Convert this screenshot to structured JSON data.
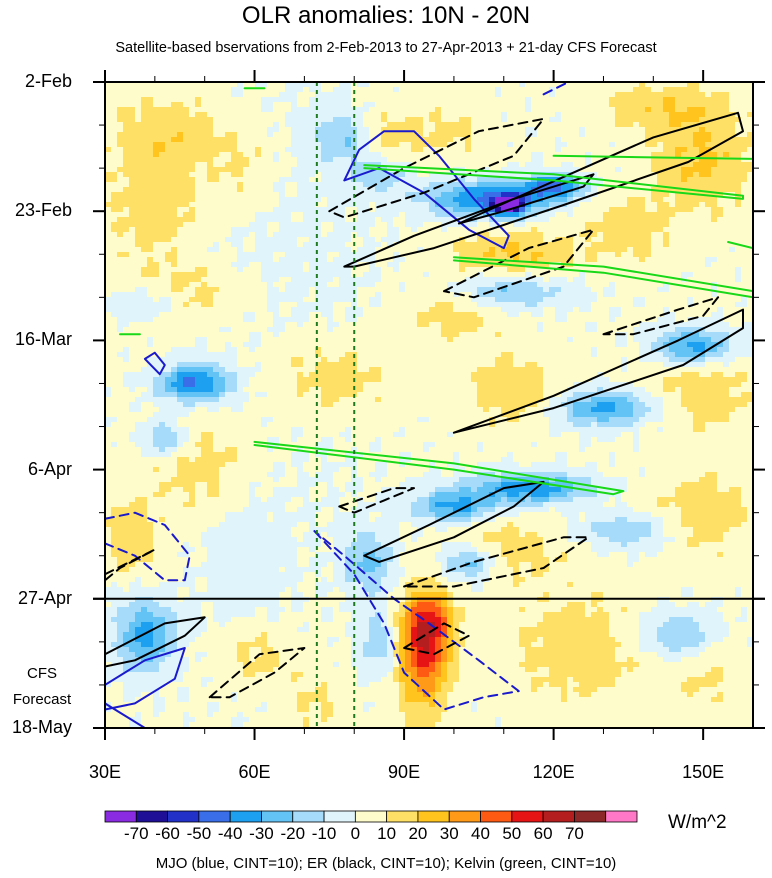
{
  "chart_data": {
    "type": "heatmap",
    "title": "OLR anomalies: 10N - 20N",
    "subtitle": "Satellite-based bservations from 2-Feb-2013 to 27-Apr-2013 + 21-day CFS Forecast",
    "xaxis": {
      "range": [
        30,
        160
      ],
      "ticks": [
        30,
        60,
        90,
        120,
        150
      ],
      "tick_labels": [
        "30E",
        "60E",
        "90E",
        "120E",
        "150E"
      ]
    },
    "yaxis": {
      "range_days": [
        0,
        105
      ],
      "reversed": true,
      "ticks": [
        0,
        21,
        42,
        63,
        84,
        105
      ],
      "tick_labels": [
        "2-Feb",
        "23-Feb",
        "16-Mar",
        "6-Apr",
        "27-Apr",
        "18-May"
      ]
    },
    "forecast": {
      "start_day": 84,
      "label_line1": "CFS",
      "label_line2": "Forecast"
    },
    "reference_lines_lon": [
      72.5,
      80
    ],
    "colorbar": {
      "label_values": [
        -70,
        -60,
        -50,
        -40,
        -30,
        -20,
        -10,
        0,
        10,
        20,
        30,
        40,
        50,
        60,
        70
      ],
      "tick_labels": [
        "-70",
        "-60",
        "-50",
        "-40",
        "-30",
        "-20",
        "-10",
        "0",
        "10",
        "20",
        "30",
        "40",
        "50",
        "60",
        "70"
      ],
      "colors": [
        "#8a2be2",
        "#1e0f96",
        "#2232c8",
        "#3a6ee8",
        "#1ea0f0",
        "#64c3f5",
        "#a6dcfa",
        "#dff4fb",
        "#fffccc",
        "#ffe066",
        "#ffc41e",
        "#ff9a19",
        "#ff5a14",
        "#e61414",
        "#b41e1e",
        "#8c2828",
        "#ff78c8"
      ],
      "units": "W/m^2"
    },
    "anomaly_features": [
      {
        "lon": 43,
        "day": 8,
        "value": 15,
        "slon": 12,
        "sday": 6
      },
      {
        "lon": 40,
        "day": 20,
        "value": 15,
        "slon": 10,
        "sday": 9
      },
      {
        "lon": 58,
        "day": 14,
        "value": 10,
        "slon": 7,
        "sday": 7
      },
      {
        "lon": 86,
        "day": 9,
        "value": 15,
        "slon": 8,
        "sday": 5
      },
      {
        "lon": 100,
        "day": 8,
        "value": 10,
        "slon": 7,
        "sday": 5
      },
      {
        "lon": 142,
        "day": 4,
        "value": 15,
        "slon": 12,
        "sday": 4
      },
      {
        "lon": 150,
        "day": 13,
        "value": 20,
        "slon": 10,
        "sday": 8
      },
      {
        "lon": 135,
        "day": 24,
        "value": 15,
        "slon": 8,
        "sday": 5
      },
      {
        "lon": 112,
        "day": 28,
        "value": 20,
        "slon": 12,
        "sday": 4
      },
      {
        "lon": 45,
        "day": 35,
        "value": 15,
        "slon": 14,
        "sday": 5
      },
      {
        "lon": 100,
        "day": 37,
        "value": 15,
        "slon": 10,
        "sday": 5
      },
      {
        "lon": 75,
        "day": 48,
        "value": 15,
        "slon": 14,
        "sday": 7
      },
      {
        "lon": 112,
        "day": 50,
        "value": 15,
        "slon": 10,
        "sday": 6
      },
      {
        "lon": 150,
        "day": 50,
        "value": 15,
        "slon": 10,
        "sday": 7
      },
      {
        "lon": 50,
        "day": 62,
        "value": 15,
        "slon": 12,
        "sday": 8
      },
      {
        "lon": 150,
        "day": 70,
        "value": 15,
        "slon": 10,
        "sday": 7
      },
      {
        "lon": 110,
        "day": 76,
        "value": 15,
        "slon": 12,
        "sday": 5
      },
      {
        "lon": 35,
        "day": 74,
        "value": 15,
        "slon": 6,
        "sday": 6
      },
      {
        "lon": 94,
        "day": 93,
        "value": 45,
        "slon": 5,
        "sday": 9
      },
      {
        "lon": 95,
        "day": 88,
        "value": 30,
        "slon": 5,
        "sday": 5
      },
      {
        "lon": 60,
        "day": 93,
        "value": 15,
        "slon": 8,
        "sday": 6
      },
      {
        "lon": 125,
        "day": 92,
        "value": 15,
        "slon": 14,
        "sday": 9
      },
      {
        "lon": 150,
        "day": 96,
        "value": 10,
        "slon": 8,
        "sday": 7
      },
      {
        "lon": 72,
        "day": 101,
        "value": 10,
        "slon": 6,
        "sday": 5
      },
      {
        "lon": 67,
        "day": 35,
        "value": -5,
        "slon": 20,
        "sday": 40
      },
      {
        "lon": 58,
        "day": 80,
        "value": -8,
        "slon": 8,
        "sday": 18
      },
      {
        "lon": 78,
        "day": 9,
        "value": -25,
        "slon": 6,
        "sday": 4
      },
      {
        "lon": 107,
        "day": 19,
        "value": -45,
        "slon": 12,
        "sday": 3
      },
      {
        "lon": 111,
        "day": 20,
        "value": -70,
        "slon": 3,
        "sday": 1.5
      },
      {
        "lon": 120,
        "day": 17,
        "value": -40,
        "slon": 6,
        "sday": 2
      },
      {
        "lon": 85,
        "day": 15,
        "value": -20,
        "slon": 6,
        "sday": 3
      },
      {
        "lon": 38,
        "day": 36,
        "value": -20,
        "slon": 8,
        "sday": 3
      },
      {
        "lon": 48,
        "day": 49,
        "value": -45,
        "slon": 7,
        "sday": 3
      },
      {
        "lon": 42,
        "day": 58,
        "value": -25,
        "slon": 5,
        "sday": 3
      },
      {
        "lon": 110,
        "day": 34,
        "value": -25,
        "slon": 12,
        "sday": 3
      },
      {
        "lon": 148,
        "day": 43,
        "value": -40,
        "slon": 8,
        "sday": 3
      },
      {
        "lon": 130,
        "day": 53,
        "value": -35,
        "slon": 10,
        "sday": 3
      },
      {
        "lon": 115,
        "day": 66,
        "value": -40,
        "slon": 12,
        "sday": 2.5
      },
      {
        "lon": 100,
        "day": 69,
        "value": -35,
        "slon": 8,
        "sday": 2.5
      },
      {
        "lon": 135,
        "day": 73,
        "value": -20,
        "slon": 10,
        "sday": 3
      },
      {
        "lon": 83,
        "day": 78,
        "value": -25,
        "slon": 5,
        "sday": 5
      },
      {
        "lon": 103,
        "day": 78,
        "value": -30,
        "slon": 6,
        "sday": 3
      },
      {
        "lon": 38,
        "day": 90,
        "value": -35,
        "slon": 6,
        "sday": 6
      },
      {
        "lon": 85,
        "day": 91,
        "value": -20,
        "slon": 4,
        "sday": 5
      },
      {
        "lon": 145,
        "day": 90,
        "value": -25,
        "slon": 8,
        "sday": 4
      }
    ],
    "contours": [
      {
        "name": "MJO",
        "color": "#1a1acc",
        "dashed": false,
        "points": [
          [
            78,
            16
          ],
          [
            81,
            11
          ],
          [
            86,
            8
          ],
          [
            92,
            8
          ],
          [
            97,
            12
          ],
          [
            104,
            19
          ],
          [
            111,
            25
          ],
          [
            110,
            27
          ],
          [
            103,
            24
          ],
          [
            94,
            18
          ],
          [
            85,
            14
          ],
          [
            78,
            16
          ]
        ]
      },
      {
        "name": "MJO",
        "color": "#1a1acc",
        "dashed": false,
        "points": [
          [
            38,
            45
          ],
          [
            40,
            44
          ],
          [
            42,
            46
          ],
          [
            41,
            47.5
          ],
          [
            38,
            45
          ]
        ]
      },
      {
        "name": "MJO",
        "color": "#1a1acc",
        "dashed": false,
        "points": [
          [
            30,
            98
          ],
          [
            38,
            94
          ],
          [
            46,
            92
          ],
          [
            44,
            97
          ],
          [
            36,
            101
          ],
          [
            30,
            102
          ]
        ]
      },
      {
        "name": "MJO",
        "color": "#1a1acc",
        "dashed": false,
        "points": [
          [
            30,
            101
          ],
          [
            38,
            105
          ]
        ]
      },
      {
        "name": "MJO",
        "color": "#1a1acc",
        "dashed": true,
        "points": [
          [
            118,
            2
          ],
          [
            123,
            0
          ],
          [
            126,
            0
          ]
        ]
      },
      {
        "name": "MJO",
        "color": "#1a1acc",
        "dashed": true,
        "points": [
          [
            30,
            71
          ],
          [
            36,
            70
          ],
          [
            42,
            72
          ],
          [
            47,
            77
          ],
          [
            46,
            81
          ],
          [
            42,
            81
          ],
          [
            36,
            77
          ],
          [
            30,
            75
          ]
        ]
      },
      {
        "name": "MJO",
        "color": "#1a1acc",
        "dashed": true,
        "points": [
          [
            72,
            73
          ],
          [
            80,
            80
          ],
          [
            86,
            88
          ],
          [
            90,
            96
          ],
          [
            98,
            102
          ],
          [
            106,
            100
          ],
          [
            113,
            99
          ],
          [
            105,
            94
          ],
          [
            95,
            88
          ],
          [
            88,
            84
          ],
          [
            78,
            77
          ],
          [
            72,
            73
          ]
        ]
      },
      {
        "name": "ER",
        "color": "#000000",
        "dashed": false,
        "points": [
          [
            78,
            30
          ],
          [
            92,
            25
          ],
          [
            112,
            19
          ],
          [
            140,
            9
          ],
          [
            157,
            5
          ],
          [
            158,
            8
          ],
          [
            147,
            13
          ],
          [
            122,
            20
          ],
          [
            96,
            27
          ],
          [
            80,
            30
          ],
          [
            78,
            30
          ]
        ]
      },
      {
        "name": "ER",
        "color": "#000000",
        "dashed": false,
        "points": [
          [
            101,
            23
          ],
          [
            112,
            19
          ],
          [
            128,
            15
          ],
          [
            126,
            17
          ],
          [
            110,
            21
          ],
          [
            101,
            23
          ]
        ]
      },
      {
        "name": "ER",
        "color": "#000000",
        "dashed": false,
        "points": [
          [
            100,
            57
          ],
          [
            120,
            51
          ],
          [
            145,
            42
          ],
          [
            158,
            37
          ],
          [
            158,
            40
          ],
          [
            146,
            46
          ],
          [
            120,
            53
          ],
          [
            100,
            57
          ]
        ]
      },
      {
        "name": "ER",
        "color": "#000000",
        "dashed": false,
        "points": [
          [
            82,
            77
          ],
          [
            95,
            72
          ],
          [
            110,
            66
          ],
          [
            118,
            65
          ],
          [
            112,
            69
          ],
          [
            100,
            74
          ],
          [
            85,
            78
          ],
          [
            82,
            77
          ]
        ]
      },
      {
        "name": "ER",
        "color": "#000000",
        "dashed": false,
        "points": [
          [
            30,
            93
          ],
          [
            42,
            88
          ],
          [
            50,
            87
          ],
          [
            46,
            90
          ],
          [
            36,
            94
          ],
          [
            30,
            95
          ]
        ]
      },
      {
        "name": "ER",
        "color": "#000000",
        "dashed": true,
        "points": [
          [
            75,
            21
          ],
          [
            90,
            14
          ],
          [
            105,
            8
          ],
          [
            118,
            6
          ],
          [
            112,
            12
          ],
          [
            94,
            18
          ],
          [
            78,
            22
          ],
          [
            75,
            21
          ]
        ]
      },
      {
        "name": "ER",
        "color": "#000000",
        "dashed": true,
        "points": [
          [
            98,
            34
          ],
          [
            115,
            27
          ],
          [
            128,
            24
          ],
          [
            122,
            30
          ],
          [
            104,
            35
          ],
          [
            98,
            34
          ]
        ]
      },
      {
        "name": "ER",
        "color": "#000000",
        "dashed": true,
        "points": [
          [
            130,
            41
          ],
          [
            145,
            37
          ],
          [
            153,
            35
          ],
          [
            150,
            38
          ],
          [
            136,
            41
          ],
          [
            130,
            41
          ]
        ]
      },
      {
        "name": "ER",
        "color": "#000000",
        "dashed": true,
        "points": [
          [
            77,
            69
          ],
          [
            88,
            66
          ],
          [
            92,
            66
          ],
          [
            86,
            68
          ],
          [
            80,
            70
          ],
          [
            77,
            69
          ]
        ]
      },
      {
        "name": "ER",
        "color": "#000000",
        "dashed": true,
        "points": [
          [
            90,
            82
          ],
          [
            104,
            78
          ],
          [
            122,
            74
          ],
          [
            127,
            74
          ],
          [
            118,
            79
          ],
          [
            100,
            82
          ],
          [
            90,
            82
          ]
        ]
      },
      {
        "name": "ER",
        "color": "#000000",
        "dashed": true,
        "points": [
          [
            30,
            80
          ],
          [
            40,
            76
          ],
          [
            33,
            79
          ],
          [
            30,
            81
          ]
        ]
      },
      {
        "name": "ER",
        "color": "#000000",
        "dashed": true,
        "points": [
          [
            51,
            100
          ],
          [
            61,
            93
          ],
          [
            70,
            92
          ],
          [
            64,
            96
          ],
          [
            55,
            100
          ],
          [
            51,
            100
          ]
        ]
      },
      {
        "name": "ER",
        "color": "#000000",
        "dashed": true,
        "points": [
          [
            90,
            92
          ],
          [
            98,
            88
          ],
          [
            103,
            90
          ],
          [
            96,
            93
          ],
          [
            90,
            92
          ]
        ]
      },
      {
        "name": "Kelvin",
        "color": "#18d818",
        "dashed": false,
        "points": [
          [
            82,
            14
          ],
          [
            120,
            16
          ],
          [
            158,
            19
          ],
          [
            158,
            18.5
          ],
          [
            120,
            15
          ],
          [
            82,
            13.5
          ]
        ]
      },
      {
        "name": "Kelvin",
        "color": "#18d818",
        "dashed": false,
        "points": [
          [
            120,
            12
          ],
          [
            160,
            12.5
          ]
        ]
      },
      {
        "name": "Kelvin",
        "color": "#18d818",
        "dashed": false,
        "points": [
          [
            100,
            29
          ],
          [
            130,
            31
          ],
          [
            160,
            35
          ],
          [
            160,
            34
          ],
          [
            130,
            30
          ],
          [
            100,
            28.5
          ]
        ]
      },
      {
        "name": "Kelvin",
        "color": "#18d818",
        "dashed": false,
        "points": [
          [
            60,
            59
          ],
          [
            100,
            63
          ],
          [
            132,
            67
          ],
          [
            134,
            66.5
          ],
          [
            100,
            62
          ],
          [
            60,
            58.5
          ]
        ]
      },
      {
        "name": "Kelvin",
        "color": "#18d818",
        "dashed": false,
        "points": [
          [
            58,
            1
          ],
          [
            62,
            1
          ]
        ]
      },
      {
        "name": "Kelvin",
        "color": "#18d818",
        "dashed": false,
        "points": [
          [
            33,
            41
          ],
          [
            37,
            41
          ]
        ]
      },
      {
        "name": "Kelvin",
        "color": "#18d818",
        "dashed": false,
        "points": [
          [
            155,
            26
          ],
          [
            160,
            27
          ]
        ]
      }
    ],
    "footer_caption": "MJO (blue, CINT=10); ER (black, CINT=10); Kelvin (green, CINT=10)"
  }
}
